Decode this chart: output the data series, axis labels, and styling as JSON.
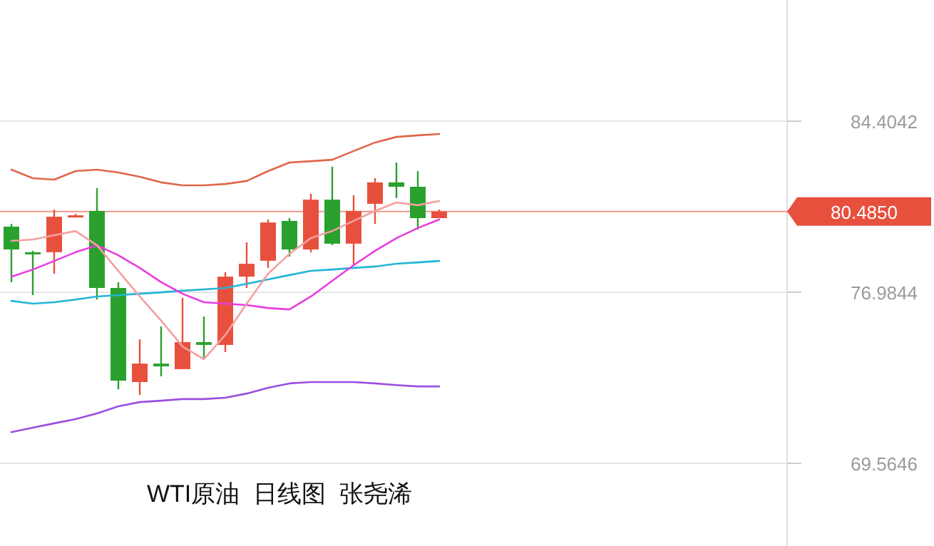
{
  "chart_data": {
    "type": "candlestick",
    "title": "WTI原油  日线图  张尧浠",
    "categories": [
      null,
      null,
      null,
      null,
      null,
      null,
      null,
      null,
      null,
      null,
      null,
      null,
      null,
      null,
      null,
      null,
      null,
      null,
      null,
      null,
      null
    ],
    "ohlc": [
      [
        79.83,
        79.95,
        77.42,
        78.84
      ],
      [
        78.72,
        78.78,
        76.86,
        78.69
      ],
      [
        78.72,
        80.57,
        77.79,
        80.26
      ],
      [
        80.29,
        80.38,
        80.26,
        80.32
      ],
      [
        80.51,
        81.5,
        76.67,
        77.17
      ],
      [
        77.17,
        77.42,
        72.78,
        73.15
      ],
      [
        73.09,
        74.94,
        72.53,
        73.89
      ],
      [
        73.89,
        75.5,
        73.34,
        73.77
      ],
      [
        73.65,
        76.74,
        73.65,
        74.82
      ],
      [
        74.82,
        75.93,
        74.08,
        74.7
      ],
      [
        74.7,
        77.85,
        74.39,
        77.66
      ],
      [
        77.66,
        79.15,
        77.17,
        78.22
      ],
      [
        78.35,
        80.14,
        78.04,
        80.01
      ],
      [
        80.08,
        80.2,
        78.53,
        78.84
      ],
      [
        78.84,
        81.25,
        78.72,
        81.0
      ],
      [
        81.0,
        82.43,
        79.03,
        79.09
      ],
      [
        79.09,
        81.19,
        78.16,
        80.51
      ],
      [
        80.82,
        81.93,
        79.95,
        81.75
      ],
      [
        81.75,
        82.61,
        81.07,
        81.56
      ],
      [
        81.56,
        82.24,
        79.7,
        80.2
      ],
      [
        80.2,
        80.57,
        80.2,
        80.485
      ]
    ],
    "series": [
      {
        "type": "line",
        "color": "#e0664a",
        "values": [
          82.3,
          81.93,
          81.87,
          82.24,
          82.3,
          82.18,
          81.99,
          81.75,
          81.62,
          81.62,
          81.68,
          81.81,
          82.24,
          82.61,
          82.67,
          82.73,
          83.11,
          83.48,
          83.72,
          83.79,
          83.85
        ]
      },
      {
        "type": "line",
        "color": "#9b4fe0",
        "values": [
          70.92,
          71.11,
          71.3,
          71.48,
          71.73,
          72.04,
          72.22,
          72.28,
          72.35,
          72.35,
          72.41,
          72.59,
          72.84,
          73.03,
          73.09,
          73.09,
          73.09,
          73.03,
          72.96,
          72.9,
          72.9
        ]
      },
      {
        "type": "line",
        "color": "#22b5d6",
        "values": [
          76.61,
          76.49,
          76.55,
          76.67,
          76.8,
          76.86,
          76.92,
          76.98,
          77.05,
          77.11,
          77.17,
          77.35,
          77.54,
          77.73,
          77.91,
          77.97,
          78.04,
          78.1,
          78.22,
          78.28,
          78.34
        ]
      },
      {
        "type": "line",
        "color": "#e83de0",
        "values": [
          77.66,
          77.97,
          78.34,
          78.72,
          79.02,
          78.59,
          78.04,
          77.42,
          76.92,
          76.55,
          76.49,
          76.43,
          76.3,
          76.24,
          76.8,
          77.48,
          78.16,
          78.78,
          79.33,
          79.77,
          80.14
        ]
      },
      {
        "type": "line",
        "color": "#f4a0a0",
        "values": [
          79.21,
          79.27,
          79.46,
          79.64,
          79.02,
          77.91,
          76.8,
          75.75,
          74.63,
          74.08,
          75.13,
          76.49,
          77.79,
          78.65,
          79.33,
          79.64,
          80.08,
          80.51,
          80.88,
          80.76,
          80.94
        ]
      }
    ],
    "ylim": [
      69.5646,
      84.4042
    ],
    "yticks": [
      84.4042,
      76.9844,
      69.5646
    ],
    "ref_lines": [
      {
        "axis": "y",
        "value": 80.485,
        "label": "80.4850",
        "color": "#e8503e"
      }
    ],
    "grid": "y",
    "tick_labels": "y"
  }
}
